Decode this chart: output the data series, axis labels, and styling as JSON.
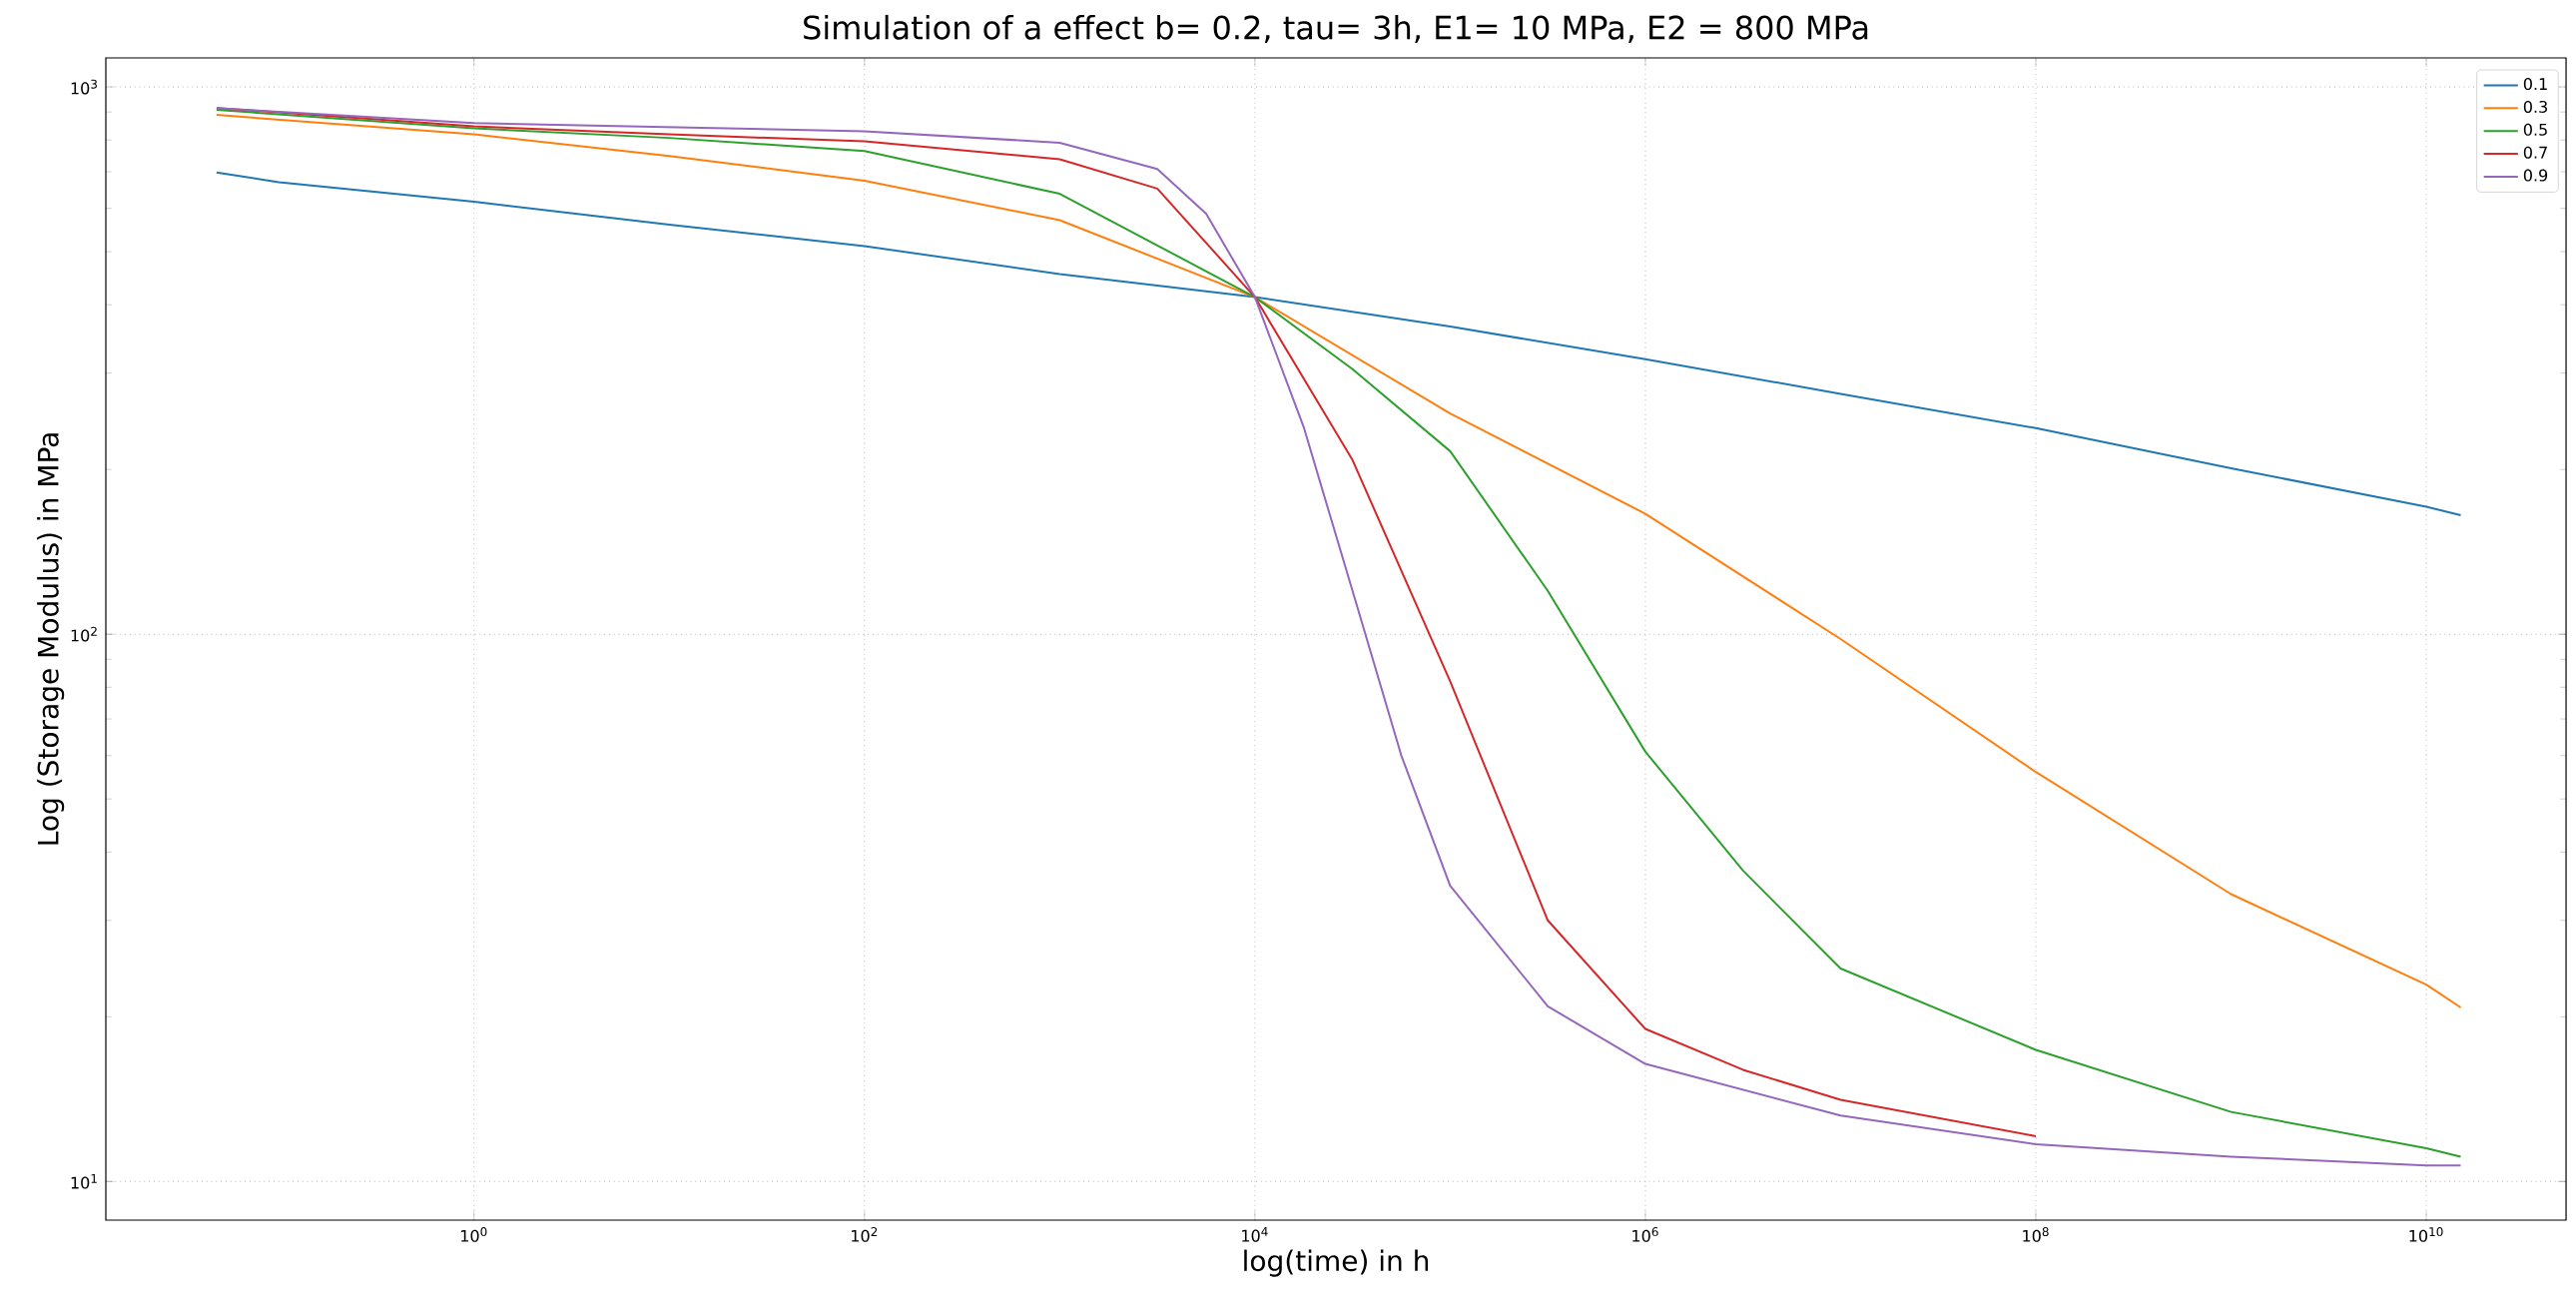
{
  "chart_data": {
    "type": "line",
    "title": "Simulation of a effect b= 0.2, tau= 3h, E1= 10 MPa, E2 = 800 MPa",
    "xlabel": "log(time) in h",
    "ylabel": "Log (Storage Modulus) in MPa",
    "log": "xy",
    "grid": true,
    "legend": "top right",
    "xlim": [
      0.013,
      52000000000.0
    ],
    "ylim": [
      8.5,
      1130
    ],
    "xticks": [
      {
        "value": 1,
        "label": "10$^{0}$"
      },
      {
        "value": 100,
        "label": "10$^{2}$"
      },
      {
        "value": 10000,
        "label": "10$^{4}$"
      },
      {
        "value": 1000000,
        "label": "10$^{6}$"
      },
      {
        "value": 100000000,
        "label": "10$^{8}$"
      },
      {
        "value": 10000000000,
        "label": "10$^{10}$"
      }
    ],
    "yticks": [
      {
        "value": 10,
        "label": "10$^{1}$"
      },
      {
        "value": 100,
        "label": "10$^{2}$"
      },
      {
        "value": 1000,
        "label": "10$^{3}$"
      }
    ],
    "series": [
      {
        "name": "0.1",
        "color": "#1f77b4",
        "x": [
          0.048,
          0.1,
          1,
          10,
          100,
          1000,
          10000,
          100000,
          1000000,
          10000000,
          100000000,
          1000000000,
          10000000000,
          15000000000
        ],
        "values": [
          698,
          670,
          617,
          560,
          512,
          455,
          413,
          365,
          318,
          275,
          238,
          201,
          171,
          165
        ]
      },
      {
        "name": "0.3",
        "color": "#ff7f0e",
        "x": [
          0.048,
          1,
          10,
          100,
          1000,
          10000,
          100000,
          1000000,
          10000000,
          100000000,
          1000000000,
          10000000000,
          15000000000
        ],
        "values": [
          889,
          819,
          748,
          674,
          571,
          413,
          253,
          166,
          98,
          56,
          33.5,
          22.9,
          20.8
        ]
      },
      {
        "name": "0.5",
        "color": "#2ca02c",
        "x": [
          0.048,
          1,
          10,
          100,
          1000,
          10000,
          31623,
          100000,
          316228,
          1000000,
          3162278,
          10000000,
          100000000,
          1000000000,
          10000000000,
          15000000000
        ],
        "values": [
          908,
          840,
          807,
          764,
          638,
          413,
          305,
          216,
          120,
          61,
          37,
          24.5,
          17.4,
          13.4,
          11.5,
          11.1
        ]
      },
      {
        "name": "0.7",
        "color": "#d62728",
        "x": [
          0.048,
          1,
          10,
          100,
          1000,
          3162,
          10000,
          31623,
          100000,
          316228,
          1000000,
          3162278,
          10000000,
          100000000
        ],
        "values": [
          915,
          847,
          819,
          796,
          738,
          652,
          413,
          208,
          82,
          30,
          19,
          16,
          14.1,
          12.1
        ]
      },
      {
        "name": "0.9",
        "color": "#9467bd",
        "x": [
          0.048,
          1,
          100,
          1000,
          3162,
          5623,
          10000,
          17783,
          31623,
          56234,
          100000,
          316228,
          1000000,
          10000000,
          100000000,
          1000000000,
          10000000000,
          15000000000
        ],
        "values": [
          915,
          859,
          830,
          791,
          708,
          587,
          413,
          239,
          120,
          60,
          34.7,
          20.9,
          16.4,
          13.2,
          11.7,
          11.1,
          10.7,
          10.7
        ]
      }
    ]
  }
}
